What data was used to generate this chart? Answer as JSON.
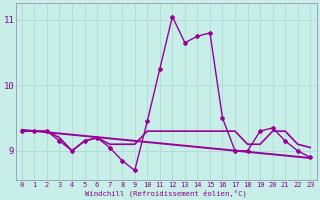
{
  "xlabel": "Windchill (Refroidissement éolien,°C)",
  "background_color": "#c8eee8",
  "grid_color": "#b0ddda",
  "line_color": "#990099",
  "hours": [
    0,
    1,
    2,
    3,
    4,
    5,
    6,
    7,
    8,
    9,
    10,
    11,
    12,
    13,
    14,
    15,
    16,
    17,
    18,
    19,
    20,
    21,
    22,
    23
  ],
  "temp_line": [
    9.3,
    9.3,
    9.3,
    9.2,
    9.0,
    9.15,
    9.2,
    9.1,
    9.1,
    9.1,
    9.3,
    9.3,
    9.3,
    9.3,
    9.3,
    9.3,
    9.3,
    9.3,
    9.1,
    9.1,
    9.3,
    9.3,
    9.1,
    9.05
  ],
  "windchill_line": [
    9.3,
    9.3,
    9.3,
    9.15,
    9.0,
    9.15,
    9.2,
    9.05,
    8.85,
    8.7,
    9.45,
    10.25,
    11.05,
    10.65,
    10.75,
    10.8,
    9.5,
    9.0,
    9.0,
    9.3,
    9.35,
    9.15,
    9.0,
    8.9
  ],
  "regression_line_x": [
    0,
    23
  ],
  "regression_line_y": [
    9.32,
    8.89
  ],
  "ylim": [
    8.55,
    11.25
  ],
  "yticks": [
    9,
    10,
    11
  ],
  "xlim": [
    -0.5,
    23.5
  ],
  "xticks": [
    0,
    1,
    2,
    3,
    4,
    5,
    6,
    7,
    8,
    9,
    10,
    11,
    12,
    13,
    14,
    15,
    16,
    17,
    18,
    19,
    20,
    21,
    22,
    23
  ],
  "tick_color": "#880088",
  "spine_color": "#8888aa"
}
